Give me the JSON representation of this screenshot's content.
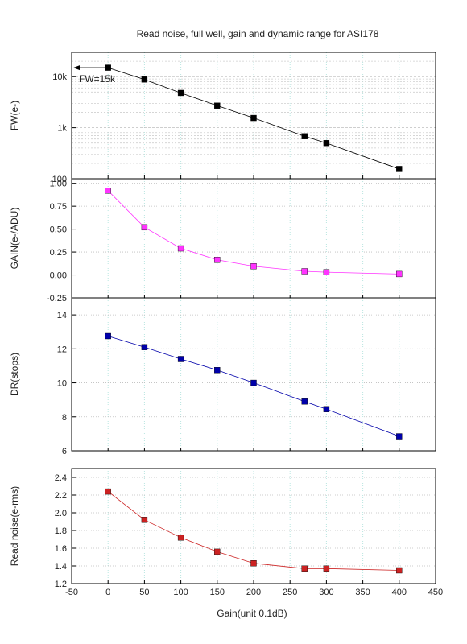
{
  "chart_data": {
    "title": "Read noise, full well, gain and dynamic range for ASI178",
    "xlabel": "Gain(unit 0.1dB)",
    "xlim": [
      -50,
      450
    ],
    "xticks": [
      "-50",
      "0",
      "50",
      "100",
      "150",
      "200",
      "250",
      "300",
      "350",
      "400",
      "450"
    ],
    "x": [
      0,
      50,
      100,
      150,
      200,
      270,
      300,
      400
    ],
    "panels": [
      {
        "type": "scatter-line",
        "ylabel": "FW(e-)",
        "scale": "log",
        "ylim": [
          100,
          30000
        ],
        "yticks": [
          "100",
          "1k",
          "10k"
        ],
        "series": [
          {
            "values": [
              15000,
              8800,
              4800,
              2700,
              1550,
              680,
              500,
              155
            ]
          }
        ],
        "annotation": "FW=15k",
        "color": "#000000"
      },
      {
        "type": "scatter-line",
        "ylabel": "GAIN(e-/ADU)",
        "scale": "linear",
        "ylim": [
          -0.25,
          1.05
        ],
        "yticks": [
          "-0.25",
          "0.00",
          "0.25",
          "0.50",
          "0.75",
          "1.00"
        ],
        "series": [
          {
            "values": [
              0.92,
              0.52,
              0.29,
              0.165,
              0.095,
              0.04,
              0.03,
              0.01
            ]
          }
        ],
        "color": "#ff33ff"
      },
      {
        "type": "scatter-line",
        "ylabel": "DR(stops)",
        "scale": "linear",
        "ylim": [
          6,
          15
        ],
        "yticks": [
          "6",
          "8",
          "10",
          "12",
          "14"
        ],
        "series": [
          {
            "values": [
              12.75,
              12.1,
              11.4,
              10.75,
              10.0,
              8.9,
              8.45,
              6.85
            ]
          }
        ],
        "color": "#0000aa"
      },
      {
        "type": "scatter-line",
        "ylabel": "Read noise(e-rms)",
        "scale": "linear",
        "ylim": [
          1.2,
          2.5
        ],
        "yticks": [
          "1.2",
          "1.4",
          "1.6",
          "1.8",
          "2.0",
          "2.2",
          "2.4"
        ],
        "series": [
          {
            "values": [
              2.24,
              1.92,
              1.72,
              1.56,
              1.43,
              1.37,
              1.37,
              1.35
            ]
          }
        ],
        "color": "#cc2222"
      }
    ]
  }
}
